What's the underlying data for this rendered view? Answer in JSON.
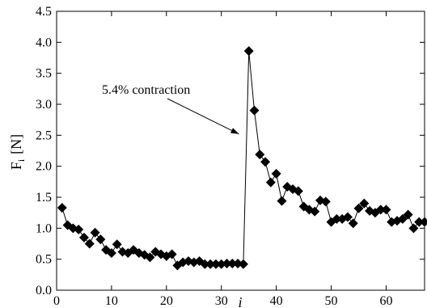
{
  "chart_data": {
    "type": "scatter",
    "xlabel": "i",
    "ylabel": "F",
    "ylabel_subscript": "i",
    "ylabel_unit": "[N]",
    "xlim": [
      0,
      67
    ],
    "ylim": [
      0.0,
      4.5
    ],
    "xticks": [
      0,
      10,
      20,
      30,
      40,
      50,
      60
    ],
    "xtick_labels": [
      "0",
      "10",
      "20",
      "30",
      "40",
      "50",
      "60"
    ],
    "yticks": [
      0.0,
      0.5,
      1.0,
      1.5,
      2.0,
      2.5,
      3.0,
      3.5,
      4.0,
      4.5
    ],
    "ytick_labels": [
      "0.0",
      "0.5",
      "1.0",
      "1.5",
      "2.0",
      "2.5",
      "3.0",
      "3.5",
      "4.0",
      "4.5"
    ],
    "grid": false,
    "line": true,
    "marker": "diamond",
    "annotation": {
      "text": "5.4% contraction",
      "target_x": 33.2,
      "target_y": 2.52
    },
    "series": [
      {
        "x": [
          1,
          2,
          3,
          4,
          5,
          6,
          7,
          8,
          9,
          10,
          11,
          12,
          13,
          14,
          15,
          16,
          17,
          18,
          19,
          20,
          21,
          22,
          23,
          24,
          25,
          26,
          27,
          28,
          29,
          30,
          31,
          32,
          33,
          34,
          35,
          36,
          37,
          38,
          39,
          40,
          41,
          42,
          43,
          44,
          45,
          46,
          47,
          48,
          49,
          50,
          51,
          52,
          53,
          54,
          55,
          56,
          57,
          58,
          59,
          60,
          61,
          62,
          63,
          64,
          65,
          66,
          67
        ],
        "y": [
          1.33,
          1.05,
          1.0,
          0.98,
          0.85,
          0.75,
          0.93,
          0.82,
          0.65,
          0.6,
          0.74,
          0.62,
          0.6,
          0.65,
          0.6,
          0.57,
          0.53,
          0.62,
          0.58,
          0.55,
          0.58,
          0.4,
          0.45,
          0.47,
          0.45,
          0.47,
          0.42,
          0.42,
          0.42,
          0.42,
          0.43,
          0.43,
          0.43,
          0.42,
          3.86,
          2.9,
          2.19,
          2.07,
          1.74,
          1.88,
          1.44,
          1.67,
          1.63,
          1.6,
          1.35,
          1.3,
          1.27,
          1.45,
          1.43,
          1.1,
          1.15,
          1.15,
          1.18,
          1.08,
          1.32,
          1.4,
          1.28,
          1.25,
          1.3,
          1.3,
          1.1,
          1.12,
          1.15,
          1.22,
          1.0,
          1.1,
          1.1
        ]
      }
    ]
  }
}
